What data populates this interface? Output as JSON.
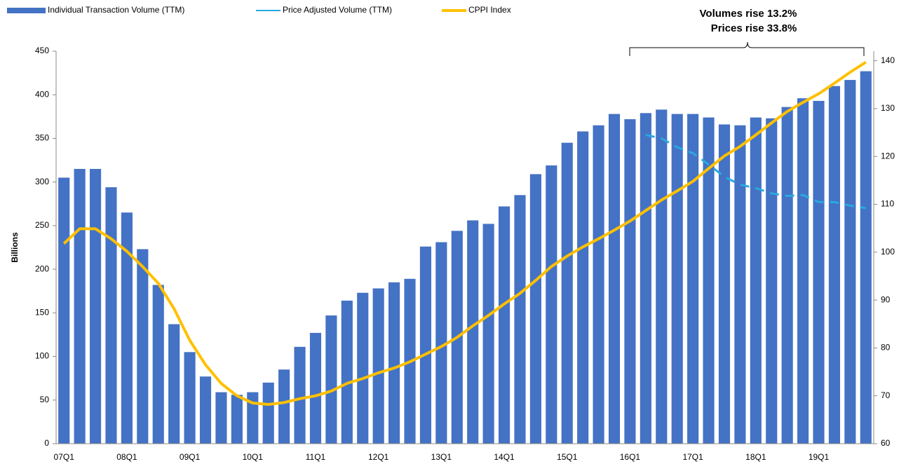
{
  "chart_data": {
    "type": "bar_line",
    "categories": [
      "07Q1",
      null,
      null,
      null,
      "08Q1",
      null,
      null,
      null,
      "09Q1",
      null,
      null,
      null,
      "10Q1",
      null,
      null,
      null,
      "11Q1",
      null,
      null,
      null,
      "12Q1",
      null,
      null,
      null,
      "13Q1",
      null,
      null,
      null,
      "14Q1",
      null,
      null,
      null,
      "15Q1",
      null,
      null,
      null,
      "16Q1",
      null,
      null,
      null,
      "17Q1",
      null,
      null,
      null,
      "18Q1",
      null,
      null,
      null,
      "19Q1",
      null,
      null,
      null
    ],
    "series": [
      {
        "name": "Individual Transaction Volume (TTM)",
        "type": "bar",
        "color": "#4472c4",
        "values": [
          305,
          315,
          315,
          294,
          265,
          223,
          182,
          137,
          105,
          77,
          59,
          56,
          59,
          70,
          85,
          111,
          127,
          147,
          164,
          173,
          178,
          185,
          189,
          226,
          231,
          244,
          256,
          252,
          272,
          285,
          309,
          319,
          345,
          358,
          365,
          378,
          372,
          379,
          383,
          378,
          378,
          374,
          366,
          365,
          374,
          373,
          386,
          396,
          393,
          410,
          417,
          427
        ]
      },
      {
        "name": "Price Adjusted Volume (TTM)",
        "type": "dashed-line",
        "color": "#29a9e1",
        "values": [
          null,
          null,
          null,
          null,
          null,
          null,
          null,
          null,
          null,
          null,
          null,
          null,
          null,
          null,
          null,
          null,
          null,
          null,
          null,
          null,
          null,
          null,
          null,
          null,
          null,
          null,
          null,
          null,
          null,
          null,
          null,
          null,
          null,
          null,
          null,
          null,
          null,
          354,
          350,
          340,
          333,
          320,
          306,
          297,
          293,
          287,
          284,
          285,
          277,
          277,
          273,
          270
        ]
      },
      {
        "name": "CPPI Index",
        "type": "line",
        "axis": "y2",
        "color": "#ffc000",
        "values": [
          101.8,
          104.9,
          104.9,
          102.8,
          100.2,
          97,
          93.5,
          88.2,
          81.6,
          76.5,
          72.6,
          70,
          68.5,
          68.2,
          68.6,
          69.4,
          70,
          71,
          72.6,
          73.6,
          74.8,
          75.8,
          77.1,
          78.7,
          80.3,
          82.2,
          84.6,
          86.8,
          89.2,
          91.4,
          94.1,
          97,
          99.2,
          101.1,
          102.8,
          104.6,
          106.5,
          108.7,
          110.9,
          112.8,
          114.8,
          117.5,
          120.1,
          122.1,
          124.5,
          127,
          129.4,
          131.3,
          133.1,
          135.3,
          137.6,
          139.7
        ]
      }
    ],
    "y_label": "Billions",
    "ylim": [
      0,
      450
    ],
    "yticks": [
      0,
      50,
      100,
      150,
      200,
      250,
      300,
      350,
      400,
      450
    ],
    "y2lim": [
      60,
      142
    ],
    "y2ticks": [
      60,
      70,
      80,
      90,
      100,
      110,
      120,
      130,
      140
    ],
    "annotations": [
      "Volumes rise 13.2%",
      "Prices rise 33.8%"
    ],
    "legend": "top-left"
  }
}
